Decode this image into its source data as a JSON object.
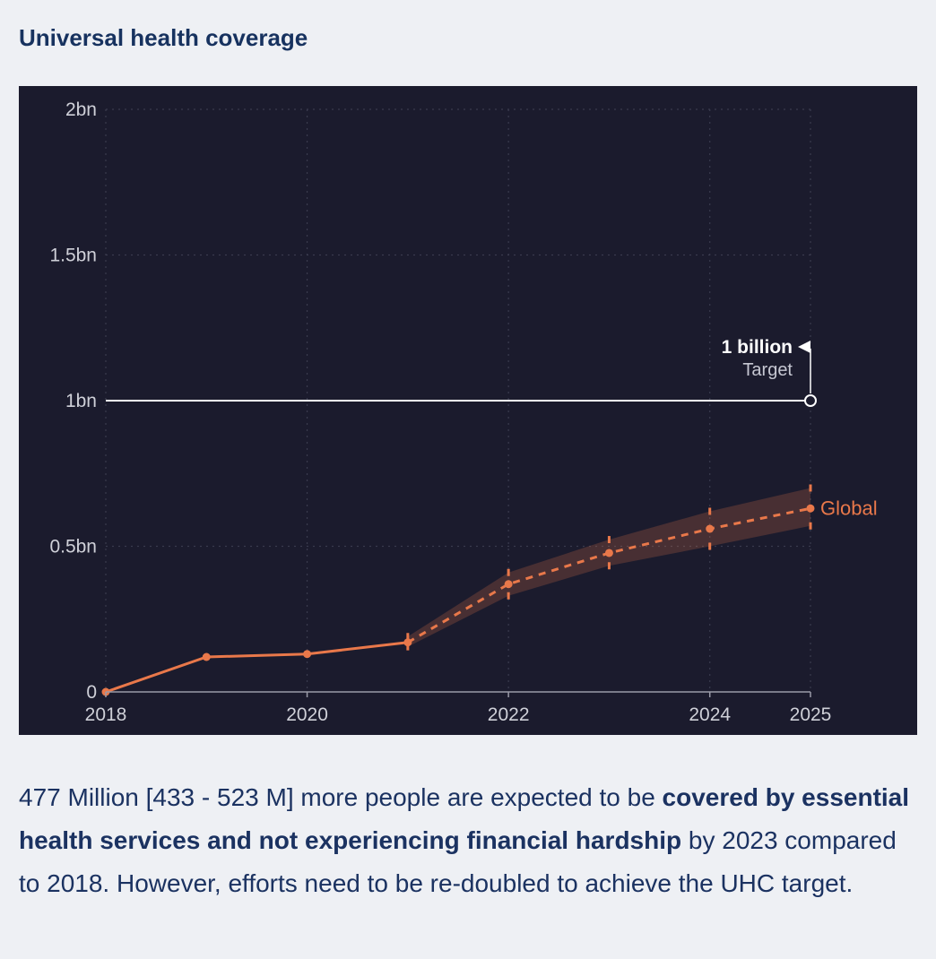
{
  "page": {
    "title": "Universal health coverage",
    "background": "#eef0f4",
    "title_color": "#17325f",
    "text_color": "#1b3261"
  },
  "chart": {
    "background": "#1b1b2d",
    "grid_color": "#3a3b4e",
    "axis_color": "#9a9ba8",
    "tick_label_color": "#cfd0d8",
    "target_line_color": "#ffffff",
    "target_sublabel_color": "#c6c7d2"
  },
  "chart_data": {
    "type": "line",
    "title": "Universal health coverage",
    "x": [
      2018,
      2019,
      2020,
      2021,
      2022,
      2023,
      2024,
      2025
    ],
    "series": [
      {
        "name": "Global",
        "color": "#e9784a",
        "band_color": "rgba(233,120,74,0.22)",
        "values_bn": [
          0,
          0.12,
          0.13,
          0.17,
          0.37,
          0.477,
          0.56,
          0.63
        ],
        "lower_bn": [
          null,
          null,
          null,
          0.155,
          0.33,
          0.433,
          0.5,
          0.57
        ],
        "upper_bn": [
          null,
          null,
          null,
          0.19,
          0.41,
          0.523,
          0.62,
          0.7
        ],
        "projection_from": 2021
      }
    ],
    "target": {
      "value_bn": 1,
      "label_bold": "1 billion",
      "label_regular": "Target"
    },
    "x_ticks": [
      2018,
      2020,
      2022,
      2024,
      2025
    ],
    "x_tick_labels": [
      "2018",
      "2020",
      "2022",
      "2024",
      "2025"
    ],
    "y_ticks": [
      0,
      0.5,
      1,
      1.5,
      2
    ],
    "y_tick_labels": [
      "0",
      "0.5bn",
      "1bn",
      "1.5bn",
      "2bn"
    ],
    "ylim": [
      0,
      2
    ],
    "xlim": [
      2018,
      2025
    ],
    "grid": true,
    "legend_position": "end-of-line"
  },
  "caption": {
    "part1": "477 Million [433 - 523 M] more people are expected to be ",
    "bold": "covered by essential health services and not experiencing financial hardship",
    "part2": " by 2023 compared to 2018. However, efforts need to be re-doubled to achieve the UHC target."
  }
}
